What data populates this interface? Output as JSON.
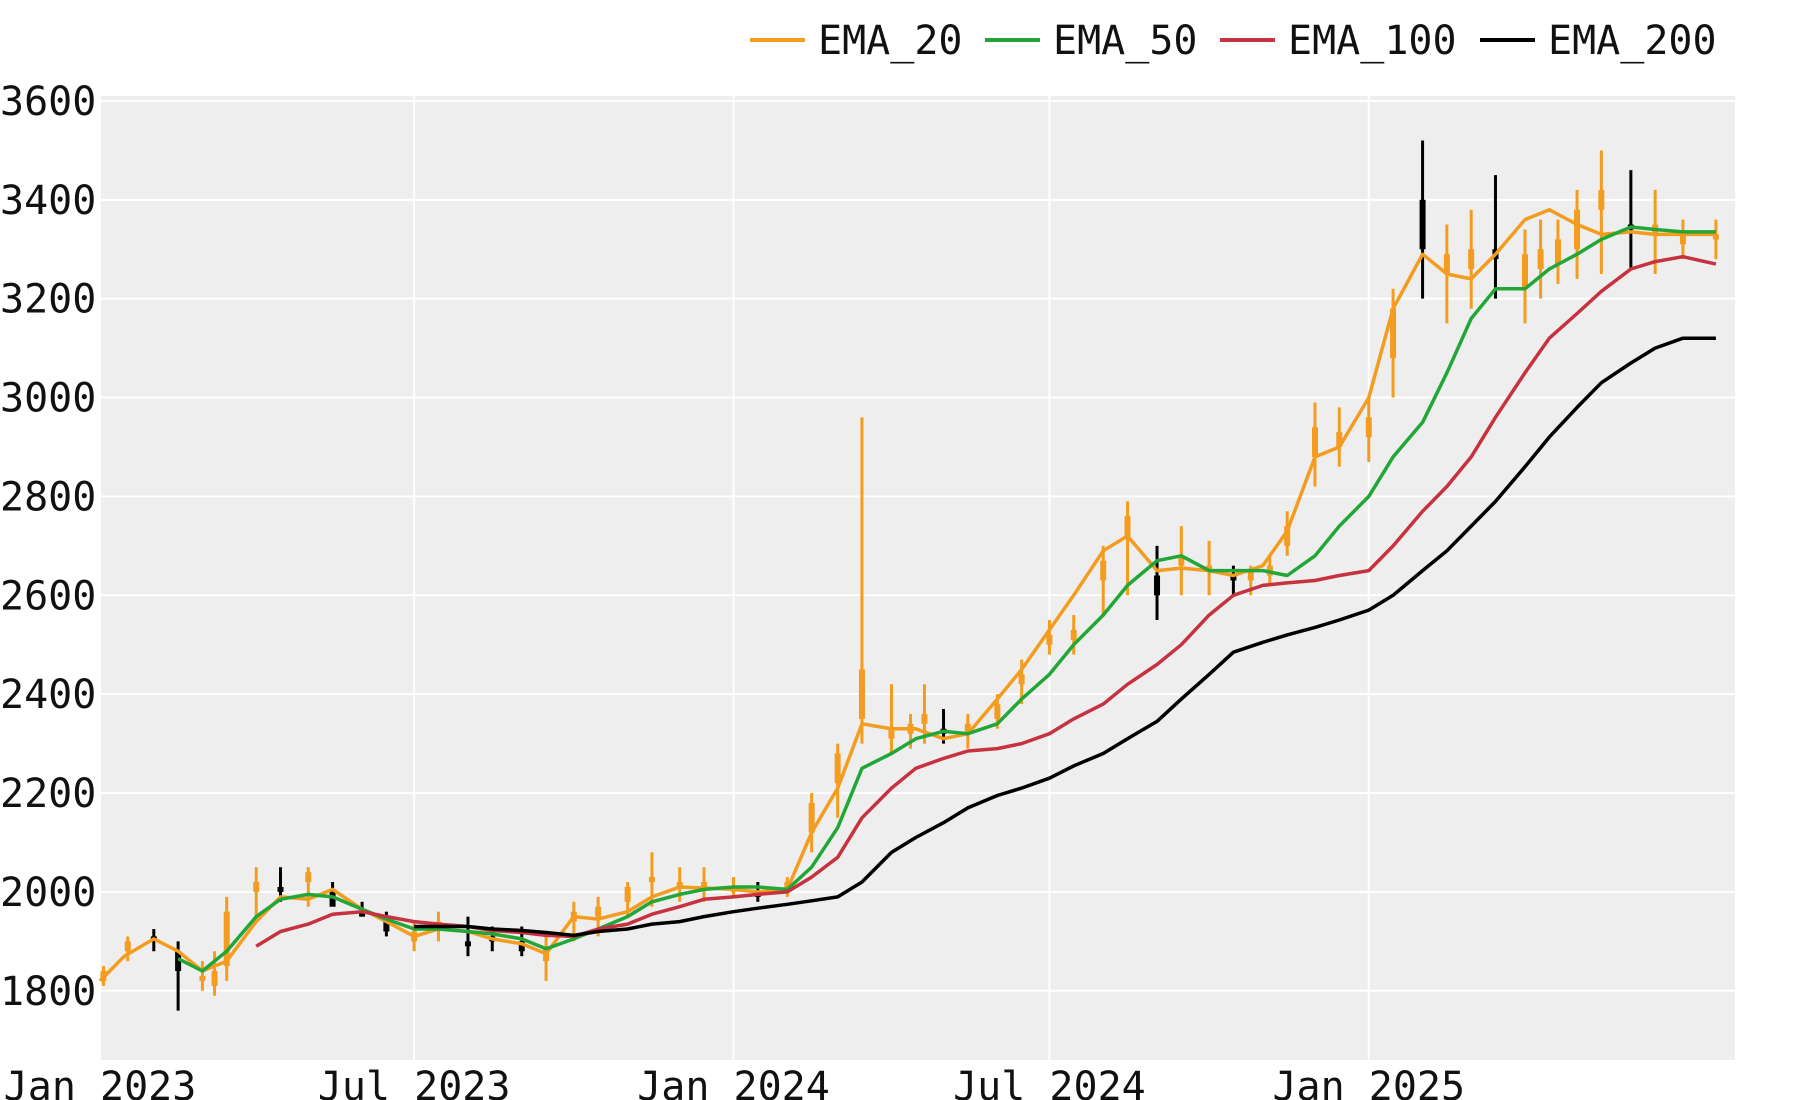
{
  "chart_data": {
    "type": "line",
    "title": "",
    "xlabel": "",
    "ylabel": "",
    "xlim": [
      "2023-01-01",
      "2025-07-31"
    ],
    "ylim": [
      1660,
      3610
    ],
    "x_ticks": [
      {
        "date": "2023-01-01",
        "label": "Jan 2023"
      },
      {
        "date": "2023-07-01",
        "label": "Jul 2023"
      },
      {
        "date": "2024-01-01",
        "label": "Jan 2024"
      },
      {
        "date": "2024-07-01",
        "label": "Jul 2024"
      },
      {
        "date": "2025-01-01",
        "label": "Jan 2025"
      }
    ],
    "y_ticks": [
      1800,
      2000,
      2200,
      2400,
      2600,
      2800,
      3000,
      3200,
      3400,
      3600
    ],
    "grid": true,
    "legend_position": "top-right",
    "background": "#eeeeee",
    "series": [
      {
        "name": "EMA_20",
        "color": "#f39c1f",
        "x": [
          "2023-01-01",
          "2023-01-15",
          "2023-02-01",
          "2023-02-15",
          "2023-03-01",
          "2023-03-15",
          "2023-04-01",
          "2023-04-15",
          "2023-05-01",
          "2023-05-15",
          "2023-06-01",
          "2023-06-15",
          "2023-07-01",
          "2023-07-15",
          "2023-08-01",
          "2023-08-15",
          "2023-09-01",
          "2023-09-15",
          "2023-10-01",
          "2023-10-15",
          "2023-11-01",
          "2023-11-15",
          "2023-12-01",
          "2023-12-15",
          "2024-01-01",
          "2024-01-15",
          "2024-02-01",
          "2024-02-15",
          "2024-03-01",
          "2024-03-15",
          "2024-04-01",
          "2024-04-15",
          "2024-05-01",
          "2024-05-15",
          "2024-06-01",
          "2024-06-15",
          "2024-07-01",
          "2024-07-15",
          "2024-08-01",
          "2024-08-15",
          "2024-09-01",
          "2024-09-15",
          "2024-10-01",
          "2024-10-15",
          "2024-11-01",
          "2024-11-15",
          "2024-12-01",
          "2024-12-15",
          "2025-01-01",
          "2025-01-15",
          "2025-02-01",
          "2025-02-15",
          "2025-03-01",
          "2025-03-15",
          "2025-04-01",
          "2025-04-15",
          "2025-05-01",
          "2025-05-15",
          "2025-06-01",
          "2025-06-15",
          "2025-07-01",
          "2025-07-20"
        ],
        "values": [
          1820,
          1870,
          1905,
          1880,
          1840,
          1860,
          1940,
          1990,
          1985,
          2005,
          1965,
          1940,
          1910,
          1925,
          1920,
          1905,
          1895,
          1875,
          1950,
          1945,
          1960,
          1990,
          2010,
          2008,
          2005,
          2000,
          2005,
          2120,
          2210,
          2340,
          2330,
          2330,
          2310,
          2320,
          2390,
          2450,
          2530,
          2600,
          2690,
          2720,
          2650,
          2655,
          2650,
          2640,
          2660,
          2730,
          2880,
          2900,
          3000,
          3180,
          3290,
          3250,
          3240,
          3290,
          3360,
          3380,
          3350,
          3330,
          3335,
          3330,
          3330,
          3330
        ]
      },
      {
        "name": "EMA_50",
        "color": "#21a637",
        "x": [
          "2023-02-15",
          "2023-03-01",
          "2023-03-15",
          "2023-04-01",
          "2023-04-15",
          "2023-05-01",
          "2023-05-15",
          "2023-06-01",
          "2023-06-15",
          "2023-07-01",
          "2023-07-15",
          "2023-08-01",
          "2023-08-15",
          "2023-09-01",
          "2023-09-15",
          "2023-10-01",
          "2023-10-15",
          "2023-11-01",
          "2023-11-15",
          "2023-12-01",
          "2023-12-15",
          "2024-01-01",
          "2024-01-15",
          "2024-02-01",
          "2024-02-15",
          "2024-03-01",
          "2024-03-15",
          "2024-04-01",
          "2024-04-15",
          "2024-05-01",
          "2024-05-15",
          "2024-06-01",
          "2024-06-15",
          "2024-07-01",
          "2024-07-15",
          "2024-08-01",
          "2024-08-15",
          "2024-09-01",
          "2024-09-15",
          "2024-10-01",
          "2024-10-15",
          "2024-11-01",
          "2024-11-15",
          "2024-12-01",
          "2024-12-15",
          "2025-01-01",
          "2025-01-15",
          "2025-02-01",
          "2025-02-15",
          "2025-03-01",
          "2025-03-15",
          "2025-04-01",
          "2025-04-15",
          "2025-05-01",
          "2025-05-15",
          "2025-06-01",
          "2025-06-15",
          "2025-07-01",
          "2025-07-20"
        ],
        "values": [
          1865,
          1840,
          1880,
          1950,
          1985,
          1995,
          1990,
          1965,
          1945,
          1925,
          1925,
          1920,
          1915,
          1905,
          1885,
          1905,
          1925,
          1950,
          1980,
          1995,
          2005,
          2010,
          2010,
          2005,
          2050,
          2130,
          2250,
          2280,
          2310,
          2325,
          2320,
          2340,
          2390,
          2440,
          2500,
          2560,
          2620,
          2670,
          2680,
          2650,
          2650,
          2650,
          2640,
          2680,
          2740,
          2800,
          2880,
          2950,
          3050,
          3160,
          3220,
          3220,
          3260,
          3290,
          3320,
          3345,
          3340,
          3335,
          3335
        ]
      },
      {
        "name": "EMA_100",
        "color": "#c6323f",
        "x": [
          "2023-04-01",
          "2023-04-15",
          "2023-05-01",
          "2023-05-15",
          "2023-06-01",
          "2023-06-15",
          "2023-07-01",
          "2023-07-15",
          "2023-08-01",
          "2023-08-15",
          "2023-09-01",
          "2023-09-15",
          "2023-10-01",
          "2023-10-15",
          "2023-11-01",
          "2023-11-15",
          "2023-12-01",
          "2023-12-15",
          "2024-01-01",
          "2024-01-15",
          "2024-02-01",
          "2024-02-15",
          "2024-03-01",
          "2024-03-15",
          "2024-04-01",
          "2024-04-15",
          "2024-05-01",
          "2024-05-15",
          "2024-06-01",
          "2024-06-15",
          "2024-07-01",
          "2024-07-15",
          "2024-08-01",
          "2024-08-15",
          "2024-09-01",
          "2024-09-15",
          "2024-10-01",
          "2024-10-15",
          "2024-11-01",
          "2024-11-15",
          "2024-12-01",
          "2024-12-15",
          "2025-01-01",
          "2025-01-15",
          "2025-02-01",
          "2025-02-15",
          "2025-03-01",
          "2025-03-15",
          "2025-04-01",
          "2025-04-15",
          "2025-05-01",
          "2025-05-15",
          "2025-06-01",
          "2025-06-15",
          "2025-07-01",
          "2025-07-20"
        ],
        "values": [
          1890,
          1920,
          1935,
          1955,
          1960,
          1950,
          1940,
          1935,
          1930,
          1922,
          1918,
          1912,
          1910,
          1925,
          1935,
          1955,
          1970,
          1985,
          1990,
          1995,
          2000,
          2030,
          2070,
          2150,
          2210,
          2250,
          2270,
          2285,
          2290,
          2300,
          2320,
          2350,
          2380,
          2420,
          2460,
          2500,
          2560,
          2600,
          2620,
          2625,
          2630,
          2640,
          2650,
          2700,
          2770,
          2820,
          2880,
          2960,
          3050,
          3120,
          3170,
          3215,
          3260,
          3275,
          3285,
          3270
        ]
      },
      {
        "name": "EMA_200",
        "color": "#000000",
        "x": [
          "2023-07-01",
          "2023-07-15",
          "2023-08-01",
          "2023-08-15",
          "2023-09-01",
          "2023-09-15",
          "2023-10-01",
          "2023-10-15",
          "2023-11-01",
          "2023-11-15",
          "2023-12-01",
          "2023-12-15",
          "2024-01-01",
          "2024-01-15",
          "2024-02-01",
          "2024-02-15",
          "2024-03-01",
          "2024-03-15",
          "2024-04-01",
          "2024-04-15",
          "2024-05-01",
          "2024-05-15",
          "2024-06-01",
          "2024-06-15",
          "2024-07-01",
          "2024-07-15",
          "2024-08-01",
          "2024-08-15",
          "2024-09-01",
          "2024-09-15",
          "2024-10-01",
          "2024-10-15",
          "2024-11-01",
          "2024-11-15",
          "2024-12-01",
          "2024-12-15",
          "2025-01-01",
          "2025-01-15",
          "2025-02-01",
          "2025-02-15",
          "2025-03-01",
          "2025-03-15",
          "2025-04-01",
          "2025-04-15",
          "2025-05-01",
          "2025-05-15",
          "2025-06-01",
          "2025-06-15",
          "2025-07-01",
          "2025-07-20"
        ],
        "values": [
          1930,
          1930,
          1930,
          1925,
          1922,
          1918,
          1912,
          1920,
          1925,
          1935,
          1940,
          1950,
          1960,
          1967,
          1975,
          1982,
          1990,
          2020,
          2080,
          2110,
          2140,
          2170,
          2195,
          2210,
          2230,
          2255,
          2280,
          2310,
          2345,
          2390,
          2440,
          2485,
          2505,
          2520,
          2535,
          2550,
          2570,
          2600,
          2650,
          2690,
          2740,
          2790,
          2860,
          2920,
          2980,
          3030,
          3070,
          3100,
          3120,
          3120
        ]
      }
    ],
    "candles": {
      "up_color": "#f39c1f",
      "down_color": "#000000",
      "x": [
        "2023-01-03",
        "2023-01-17",
        "2023-02-01",
        "2023-02-15",
        "2023-03-01",
        "2023-03-08",
        "2023-03-15",
        "2023-04-01",
        "2023-04-15",
        "2023-05-01",
        "2023-05-15",
        "2023-06-01",
        "2023-06-15",
        "2023-07-01",
        "2023-07-15",
        "2023-08-01",
        "2023-08-15",
        "2023-09-01",
        "2023-09-15",
        "2023-10-01",
        "2023-10-15",
        "2023-11-01",
        "2023-11-15",
        "2023-12-01",
        "2023-12-15",
        "2024-01-01",
        "2024-01-15",
        "2024-02-01",
        "2024-02-15",
        "2024-03-01",
        "2024-03-15",
        "2024-04-01",
        "2024-04-12",
        "2024-04-20",
        "2024-05-01",
        "2024-05-15",
        "2024-06-01",
        "2024-06-15",
        "2024-07-01",
        "2024-07-15",
        "2024-08-01",
        "2024-08-15",
        "2024-09-01",
        "2024-09-15",
        "2024-10-01",
        "2024-10-15",
        "2024-10-25",
        "2024-11-05",
        "2024-11-15",
        "2024-12-01",
        "2024-12-15",
        "2025-01-01",
        "2025-01-15",
        "2025-02-01",
        "2025-02-15",
        "2025-03-01",
        "2025-03-15",
        "2025-04-01",
        "2025-04-10",
        "2025-04-20",
        "2025-05-01",
        "2025-05-15",
        "2025-06-01",
        "2025-06-15",
        "2025-07-01",
        "2025-07-20"
      ],
      "low": [
        1810,
        1860,
        1880,
        1760,
        1800,
        1790,
        1820,
        1950,
        1980,
        1970,
        1990,
        1950,
        1910,
        1880,
        1900,
        1870,
        1880,
        1870,
        1820,
        1900,
        1910,
        1950,
        1970,
        1980,
        1980,
        1990,
        1980,
        1990,
        2080,
        2150,
        2300,
        2280,
        2290,
        2300,
        2300,
        2290,
        2330,
        2380,
        2480,
        2480,
        2560,
        2600,
        2550,
        2600,
        2600,
        2600,
        2600,
        2620,
        2680,
        2820,
        2860,
        2870,
        3000,
        3200,
        3150,
        3180,
        3200,
        3150,
        3200,
        3230,
        3240,
        3250,
        3260,
        3250,
        3280,
        3280
      ],
      "high": [
        1850,
        1910,
        1925,
        1900,
        1860,
        1880,
        1990,
        2050,
        2050,
        2050,
        2020,
        1980,
        1960,
        1940,
        1960,
        1950,
        1930,
        1930,
        1920,
        1980,
        1990,
        2020,
        2080,
        2050,
        2050,
        2030,
        2020,
        2030,
        2200,
        2300,
        2960,
        2420,
        2360,
        2420,
        2370,
        2360,
        2400,
        2470,
        2550,
        2560,
        2700,
        2790,
        2700,
        2740,
        2710,
        2660,
        2660,
        2680,
        2770,
        2990,
        2980,
        3000,
        3220,
        3520,
        3350,
        3380,
        3450,
        3340,
        3360,
        3360,
        3420,
        3500,
        3460,
        3420,
        3360,
        3360
      ],
      "open": [
        1820,
        1880,
        1910,
        1880,
        1820,
        1810,
        1850,
        2000,
        2010,
        2020,
        2000,
        1960,
        1940,
        1900,
        1930,
        1900,
        1910,
        1900,
        1860,
        1940,
        1950,
        1980,
        2020,
        2010,
        2010,
        2000,
        2000,
        2000,
        2120,
        2220,
        2350,
        2310,
        2320,
        2340,
        2330,
        2320,
        2350,
        2420,
        2500,
        2510,
        2630,
        2720,
        2640,
        2660,
        2650,
        2640,
        2630,
        2640,
        2700,
        2880,
        2900,
        2920,
        3080,
        3400,
        3250,
        3260,
        3300,
        3220,
        3260,
        3270,
        3300,
        3380,
        3350,
        3330,
        3310,
        3320
      ],
      "close": [
        1840,
        1900,
        1900,
        1840,
        1830,
        1840,
        1960,
        2020,
        2000,
        2040,
        1970,
        1950,
        1920,
        1920,
        1940,
        1890,
        1900,
        1880,
        1890,
        1960,
        1970,
        2010,
        2030,
        2020,
        2020,
        2010,
        1990,
        2020,
        2180,
        2280,
        2450,
        2330,
        2340,
        2360,
        2320,
        2340,
        2380,
        2440,
        2520,
        2530,
        2670,
        2760,
        2600,
        2680,
        2660,
        2630,
        2650,
        2660,
        2740,
        2940,
        2930,
        2960,
        3180,
        3300,
        3290,
        3300,
        3280,
        3290,
        3300,
        3320,
        3380,
        3420,
        3340,
        3350,
        3330,
        3330
      ]
    }
  }
}
